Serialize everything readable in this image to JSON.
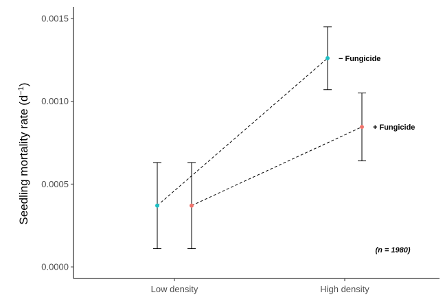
{
  "chart_data": {
    "type": "scatter",
    "title": "",
    "xlabel": "",
    "ylabel": "Seedling mortality rate (d",
    "ylabel_superscript": "−1",
    "ylabel_suffix": ")",
    "categories": [
      "Low density",
      "High density"
    ],
    "ylim": [
      -7e-05,
      0.00157
    ],
    "yticks": [
      0.0,
      0.0005,
      0.001,
      0.0015
    ],
    "ytick_labels": [
      "0.0000",
      "0.0005",
      "0.0010",
      "0.0015"
    ],
    "grid": false,
    "legend": "none",
    "connector": "dashed",
    "series": [
      {
        "name": "− Fungicide",
        "color": "#1fbfc4",
        "values": [
          0.00037,
          0.00126
        ],
        "err_low": [
          0.00011,
          0.00107
        ],
        "err_high": [
          0.00063,
          0.00145
        ]
      },
      {
        "name": "+ Fungicide",
        "color": "#f0736b",
        "values": [
          0.00037,
          0.000845
        ],
        "err_low": [
          0.00011,
          0.00064
        ],
        "err_high": [
          0.00063,
          0.00105
        ]
      }
    ],
    "annotations": [
      "(n = 1980)"
    ]
  }
}
